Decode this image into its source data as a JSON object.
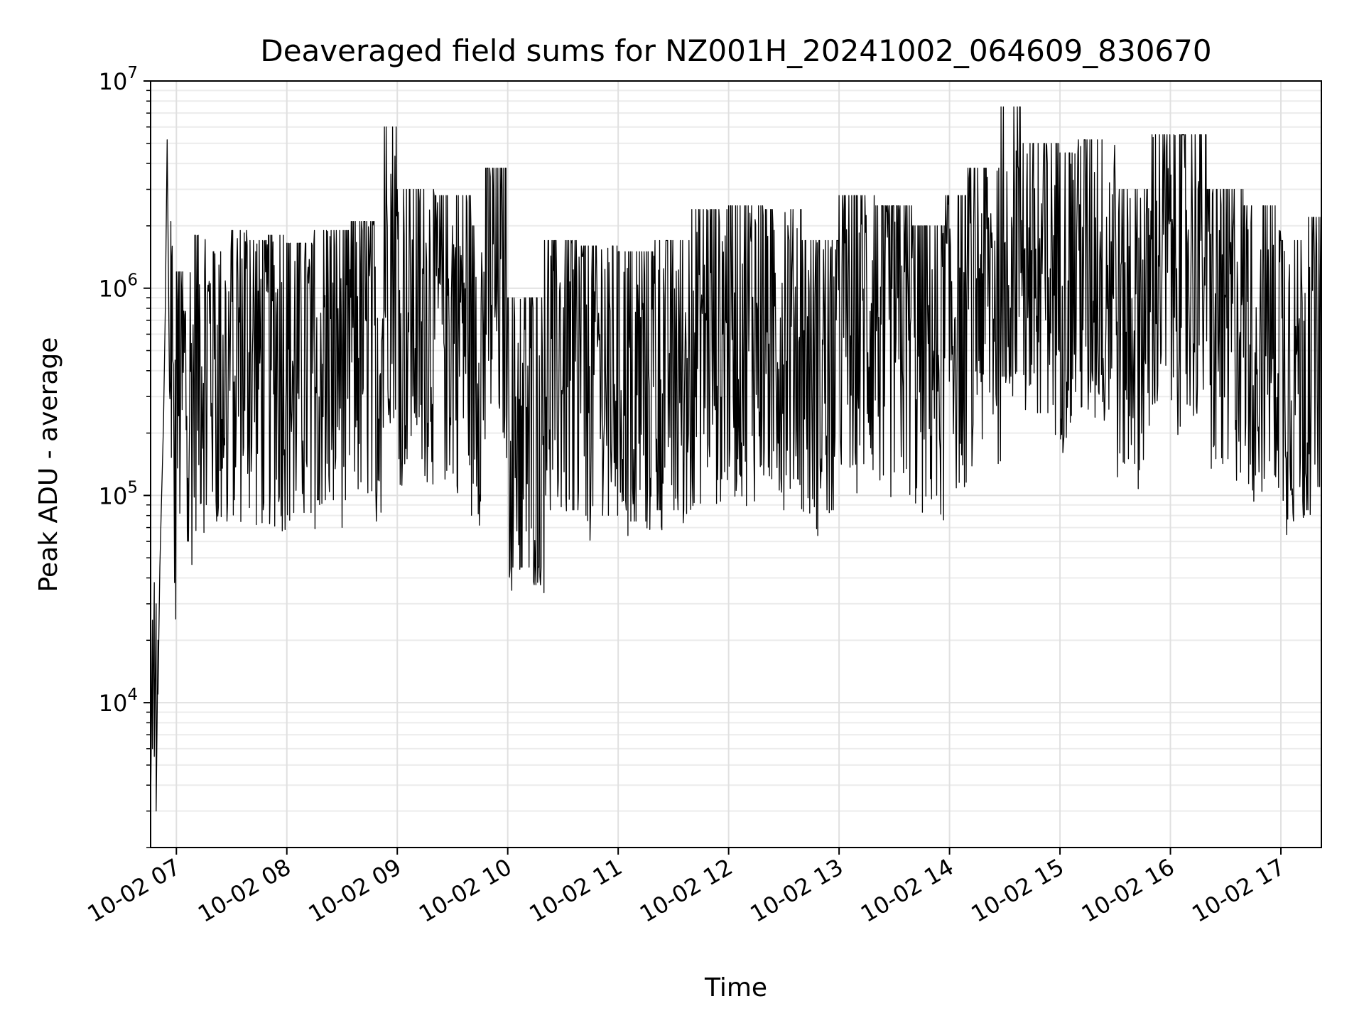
{
  "chart_data": {
    "type": "line",
    "title": "Deaveraged field sums for NZ001H_20241002_064609_830670",
    "xlabel": "Time",
    "ylabel": "Peak ADU - average",
    "yscale": "log",
    "ylim": [
      2000,
      10000000
    ],
    "xlim": [
      "2024-10-02 06:46",
      "2024-10-02 17:22"
    ],
    "grid": true,
    "x_ticks": [
      {
        "label": "10-02 07",
        "time": "2024-10-02 07:00"
      },
      {
        "label": "10-02 08",
        "time": "2024-10-02 08:00"
      },
      {
        "label": "10-02 09",
        "time": "2024-10-02 09:00"
      },
      {
        "label": "10-02 10",
        "time": "2024-10-02 10:00"
      },
      {
        "label": "10-02 11",
        "time": "2024-10-02 11:00"
      },
      {
        "label": "10-02 12",
        "time": "2024-10-02 12:00"
      },
      {
        "label": "10-02 13",
        "time": "2024-10-02 13:00"
      },
      {
        "label": "10-02 14",
        "time": "2024-10-02 14:00"
      },
      {
        "label": "10-02 15",
        "time": "2024-10-02 15:00"
      },
      {
        "label": "10-02 16",
        "time": "2024-10-02 16:00"
      },
      {
        "label": "10-02 17",
        "time": "2024-10-02 17:00"
      }
    ],
    "y_ticks": [
      {
        "base": "10",
        "exp": "4",
        "value": 10000
      },
      {
        "base": "10",
        "exp": "5",
        "value": 100000
      },
      {
        "base": "10",
        "exp": "6",
        "value": 1000000
      },
      {
        "base": "10",
        "exp": "7",
        "value": 10000000
      }
    ],
    "series": [
      {
        "color": "#000000",
        "points": [
          [
            "2024-10-02 06:46",
            3000
          ],
          [
            "2024-10-02 06:47",
            25000
          ],
          [
            "2024-10-02 06:47",
            6000
          ],
          [
            "2024-10-02 06:48",
            38000
          ],
          [
            "2024-10-02 06:48",
            5500
          ],
          [
            "2024-10-02 06:49",
            30000
          ],
          [
            "2024-10-02 06:49",
            3000
          ],
          [
            "2024-10-02 06:50",
            20000
          ],
          [
            "2024-10-02 06:50",
            11000
          ],
          [
            "2024-10-02 06:51",
            45000
          ],
          [
            "2024-10-02 06:52",
            100000
          ],
          [
            "2024-10-02 06:53",
            220000
          ],
          [
            "2024-10-02 06:54",
            800000
          ],
          [
            "2024-10-02 06:55",
            5200000
          ],
          [
            "2024-10-02 06:56",
            600000
          ],
          [
            "2024-10-02 06:57",
            2100000
          ],
          [
            "2024-10-02 06:58",
            450000
          ],
          [
            "2024-10-02 07:00",
            1200000
          ],
          [
            "2024-10-02 07:10",
            1800000
          ],
          [
            "2024-10-02 07:20",
            1500000
          ],
          [
            "2024-10-02 07:30",
            1900000
          ],
          [
            "2024-10-02 07:40",
            1700000
          ],
          [
            "2024-10-02 07:50",
            1800000
          ],
          [
            "2024-10-02 08:00",
            1650000
          ],
          [
            "2024-10-02 08:15",
            1900000
          ],
          [
            "2024-10-02 08:35",
            2100000
          ],
          [
            "2024-10-02 08:53",
            6000000
          ],
          [
            "2024-10-02 09:00",
            3000000
          ],
          [
            "2024-10-02 09:20",
            2800000
          ],
          [
            "2024-10-02 09:40",
            2000000
          ],
          [
            "2024-10-02 09:48",
            3800000
          ],
          [
            "2024-10-02 10:00",
            900000
          ],
          [
            "2024-10-02 10:20",
            1700000
          ],
          [
            "2024-10-02 10:40",
            1600000
          ],
          [
            "2024-10-02 11:00",
            1500000
          ],
          [
            "2024-10-02 11:20",
            1700000
          ],
          [
            "2024-10-02 11:40",
            2400000
          ],
          [
            "2024-10-02 12:00",
            2500000
          ],
          [
            "2024-10-02 12:20",
            2400000
          ],
          [
            "2024-10-02 12:40",
            1700000
          ],
          [
            "2024-10-02 13:00",
            2800000
          ],
          [
            "2024-10-02 13:20",
            2500000
          ],
          [
            "2024-10-02 13:40",
            2000000
          ],
          [
            "2024-10-02 13:58",
            2800000
          ],
          [
            "2024-10-02 14:10",
            3800000
          ],
          [
            "2024-10-02 14:28",
            7500000
          ],
          [
            "2024-10-02 14:40",
            5000000
          ],
          [
            "2024-10-02 15:00",
            4500000
          ],
          [
            "2024-10-02 15:10",
            5200000
          ],
          [
            "2024-10-02 15:30",
            3000000
          ],
          [
            "2024-10-02 15:50",
            5500000
          ],
          [
            "2024-10-02 16:05",
            5500000
          ],
          [
            "2024-10-02 16:20",
            3000000
          ],
          [
            "2024-10-02 16:40",
            2500000
          ],
          [
            "2024-10-02 17:00",
            1700000
          ],
          [
            "2024-10-02 17:15",
            2200000
          ],
          [
            "2024-10-02 17:22",
            300000
          ]
        ]
      }
    ]
  }
}
